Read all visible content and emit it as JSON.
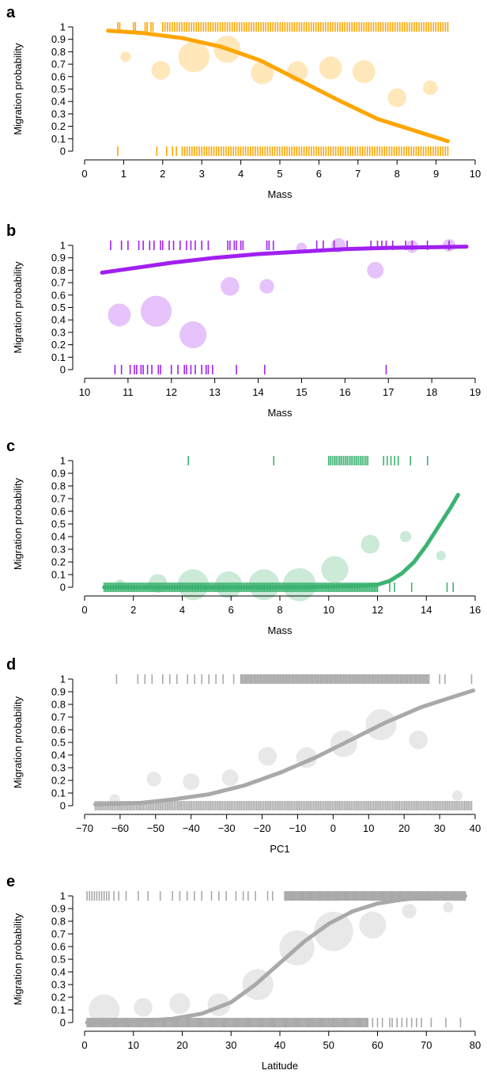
{
  "chart_data": [
    {
      "type": "scatter",
      "panel": "a",
      "color": "#FFA500",
      "xlabel": "Mass",
      "ylabel": "Migration probability",
      "xlim": [
        0,
        10
      ],
      "ylim": [
        0,
        1
      ],
      "xticks": [
        "0",
        "1",
        "2",
        "3",
        "4",
        "5",
        "6",
        "7",
        "8",
        "9",
        "10"
      ],
      "yticks": [
        "0",
        "0.1",
        "0.2",
        "0.3",
        "0.4",
        "0.5",
        "0.6",
        "0.7",
        "0.8",
        "0.9",
        "1"
      ],
      "bins": [
        {
          "x": 1.05,
          "y": 0.76,
          "size": 1
        },
        {
          "x": 1.95,
          "y": 0.65,
          "size": 3
        },
        {
          "x": 2.8,
          "y": 0.76,
          "size": 6
        },
        {
          "x": 3.65,
          "y": 0.82,
          "size": 5
        },
        {
          "x": 4.55,
          "y": 0.63,
          "size": 4
        },
        {
          "x": 5.45,
          "y": 0.64,
          "size": 3.5
        },
        {
          "x": 6.3,
          "y": 0.67,
          "size": 4
        },
        {
          "x": 7.15,
          "y": 0.64,
          "size": 4
        },
        {
          "x": 8.0,
          "y": 0.43,
          "size": 3
        },
        {
          "x": 8.85,
          "y": 0.51,
          "size": 2
        }
      ],
      "fit": {
        "x": [
          0.6,
          1.5,
          2.5,
          3.5,
          4.5,
          5.5,
          6.5,
          7.5,
          8.5,
          9.3
        ],
        "y": [
          0.97,
          0.95,
          0.91,
          0.84,
          0.73,
          0.57,
          0.41,
          0.26,
          0.16,
          0.08
        ]
      },
      "rug_top": [
        0.85,
        0.9,
        1.25,
        1.3,
        1.55,
        1.6,
        1.7,
        1.75,
        {
          "from": 2.0,
          "to": 9.3,
          "n": 120
        }
      ],
      "rug_bottom": [
        0.85,
        1.85,
        2.1,
        2.25,
        2.35,
        {
          "from": 2.5,
          "to": 9.3,
          "n": 110
        }
      ]
    },
    {
      "type": "scatter",
      "panel": "b",
      "color": "#A020F0",
      "xlabel": "Mass",
      "ylabel": "Migration probability",
      "xlim": [
        10,
        19
      ],
      "ylim": [
        0,
        1
      ],
      "xticks": [
        "10",
        "11",
        "12",
        "13",
        "14",
        "15",
        "16",
        "17",
        "18",
        "19"
      ],
      "yticks": [
        "0",
        "0.1",
        "0.2",
        "0.3",
        "0.4",
        "0.5",
        "0.6",
        "0.7",
        "0.8",
        "0.9",
        "1"
      ],
      "bins": [
        {
          "x": 10.8,
          "y": 0.44,
          "size": 4
        },
        {
          "x": 11.65,
          "y": 0.47,
          "size": 6
        },
        {
          "x": 12.5,
          "y": 0.28,
          "size": 5
        },
        {
          "x": 13.35,
          "y": 0.67,
          "size": 3
        },
        {
          "x": 14.2,
          "y": 0.67,
          "size": 2
        },
        {
          "x": 15.0,
          "y": 0.98,
          "size": 1
        },
        {
          "x": 15.85,
          "y": 1.0,
          "size": 2
        },
        {
          "x": 16.7,
          "y": 0.8,
          "size": 2.5
        },
        {
          "x": 17.55,
          "y": 0.99,
          "size": 1.5
        },
        {
          "x": 18.4,
          "y": 1.0,
          "size": 1.5
        }
      ],
      "fit": {
        "x": [
          10.4,
          11.0,
          12.0,
          13.0,
          14.0,
          15.0,
          16.0,
          17.0,
          18.0,
          18.8
        ],
        "y": [
          0.78,
          0.81,
          0.86,
          0.9,
          0.93,
          0.95,
          0.97,
          0.98,
          0.985,
          0.99
        ]
      },
      "rug_top": [
        10.6,
        10.85,
        11.0,
        11.25,
        11.35,
        11.5,
        11.6,
        11.75,
        11.8,
        11.95,
        12.05,
        12.2,
        12.35,
        12.45,
        12.55,
        12.7,
        12.85,
        13.3,
        13.35,
        13.45,
        13.5,
        13.6,
        13.65,
        14.2,
        14.25,
        14.35,
        15.35,
        15.5,
        15.75,
        16.05,
        16.6,
        16.75,
        16.85,
        16.95,
        17.1,
        17.4,
        17.55,
        17.9,
        18.4
      ],
      "rug_bottom": [
        10.7,
        10.85,
        11.05,
        11.15,
        11.2,
        11.3,
        11.35,
        11.45,
        11.55,
        11.7,
        11.75,
        12.0,
        12.15,
        12.3,
        12.35,
        12.45,
        12.55,
        12.7,
        12.8,
        12.85,
        12.95,
        13.5,
        14.15,
        16.95
      ]
    },
    {
      "type": "scatter",
      "panel": "c",
      "color": "#3CB371",
      "xlabel": "Mass",
      "ylabel": "Migration probability",
      "xlim": [
        0,
        16
      ],
      "ylim": [
        0,
        1
      ],
      "xticks": [
        "0",
        "2",
        "4",
        "6",
        "8",
        "10",
        "12",
        "14",
        "16"
      ],
      "yticks": [
        "0",
        "0.1",
        "0.2",
        "0.3",
        "0.4",
        "0.5",
        "0.6",
        "0.7",
        "0.8",
        "0.9",
        "1"
      ],
      "bins": [
        {
          "x": 1.45,
          "y": 0.02,
          "size": 1
        },
        {
          "x": 3.0,
          "y": 0.03,
          "size": 3
        },
        {
          "x": 4.45,
          "y": 0.02,
          "size": 6
        },
        {
          "x": 5.9,
          "y": 0.02,
          "size": 5
        },
        {
          "x": 7.35,
          "y": 0.02,
          "size": 6
        },
        {
          "x": 8.8,
          "y": 0.02,
          "size": 6.5
        },
        {
          "x": 10.25,
          "y": 0.14,
          "size": 5
        },
        {
          "x": 11.7,
          "y": 0.34,
          "size": 3
        },
        {
          "x": 13.15,
          "y": 0.4,
          "size": 1.2
        },
        {
          "x": 14.6,
          "y": 0.25,
          "size": 0.8
        }
      ],
      "fit": {
        "x": [
          0.8,
          4.0,
          8.0,
          11.5,
          12.0,
          12.5,
          13.0,
          13.5,
          14.0,
          14.5,
          15.0,
          15.3
        ],
        "y": [
          0.0,
          0.0,
          0.0,
          0.01,
          0.02,
          0.05,
          0.11,
          0.2,
          0.33,
          0.48,
          0.63,
          0.73
        ]
      },
      "rug_top": [
        4.25,
        7.75,
        {
          "from": 10.0,
          "to": 11.6,
          "n": 22
        },
        12.25,
        12.4,
        12.55,
        12.7,
        12.85,
        13.35,
        14.05
      ],
      "rug_bottom": [
        {
          "from": 0.8,
          "to": 12.0,
          "n": 180
        },
        12.5,
        12.7,
        13.4,
        14.85,
        15.1
      ]
    },
    {
      "type": "scatter",
      "panel": "d",
      "color": "#A9A9A9",
      "xlabel": "PC1",
      "ylabel": "Migration probability",
      "xlim": [
        -70,
        40
      ],
      "ylim": [
        0,
        1
      ],
      "xticks": [
        "−70",
        "−60",
        "−50",
        "−40",
        "−30",
        "−20",
        "−10",
        "0",
        "10",
        "20",
        "30",
        "40"
      ],
      "yticks": [
        "0",
        "0.1",
        "0.2",
        "0.3",
        "0.4",
        "0.5",
        "0.6",
        "0.7",
        "0.8",
        "0.9",
        "1"
      ],
      "bins": [
        {
          "x": -61.5,
          "y": 0.05,
          "size": 1
        },
        {
          "x": -50.5,
          "y": 0.21,
          "size": 2
        },
        {
          "x": -40.0,
          "y": 0.19,
          "size": 2.5
        },
        {
          "x": -29.0,
          "y": 0.22,
          "size": 2.5
        },
        {
          "x": -18.5,
          "y": 0.39,
          "size": 3
        },
        {
          "x": -7.5,
          "y": 0.38,
          "size": 3.5
        },
        {
          "x": 3.0,
          "y": 0.49,
          "size": 5
        },
        {
          "x": 13.5,
          "y": 0.64,
          "size": 6
        },
        {
          "x": 24.0,
          "y": 0.52,
          "size": 3
        },
        {
          "x": 35.0,
          "y": 0.08,
          "size": 1
        }
      ],
      "fit": {
        "x": [
          -67,
          -55,
          -45,
          -35,
          -25,
          -15,
          -5,
          5,
          15,
          25,
          35,
          39.5
        ],
        "y": [
          0.01,
          0.02,
          0.05,
          0.09,
          0.16,
          0.26,
          0.38,
          0.52,
          0.66,
          0.78,
          0.87,
          0.91
        ]
      },
      "rug_top": [
        -61,
        -55,
        -53,
        -51,
        -48,
        -46,
        -44,
        -41,
        -39,
        -37,
        -35,
        -33,
        -31,
        -28,
        {
          "from": -26,
          "to": 27,
          "n": 140
        },
        30,
        31.5,
        39
      ],
      "rug_bottom": [
        {
          "from": -67,
          "to": 39,
          "n": 220
        }
      ]
    },
    {
      "type": "scatter",
      "panel": "e",
      "color": "#A9A9A9",
      "xlabel": "Latitude",
      "ylabel": "Migration probability",
      "xlim": [
        0,
        80
      ],
      "ylim": [
        0,
        1
      ],
      "xticks": [
        "0",
        "10",
        "20",
        "30",
        "40",
        "50",
        "60",
        "70",
        "80"
      ],
      "yticks": [
        "0",
        "0.1",
        "0.2",
        "0.3",
        "0.4",
        "0.5",
        "0.6",
        "0.7",
        "0.8",
        "0.9",
        "1"
      ],
      "bins": [
        {
          "x": 4.0,
          "y": 0.1,
          "size": 6
        },
        {
          "x": 12.0,
          "y": 0.12,
          "size": 3
        },
        {
          "x": 19.5,
          "y": 0.15,
          "size": 3.5
        },
        {
          "x": 27.5,
          "y": 0.14,
          "size": 4
        },
        {
          "x": 35.5,
          "y": 0.3,
          "size": 6
        },
        {
          "x": 43.5,
          "y": 0.59,
          "size": 7
        },
        {
          "x": 51.0,
          "y": 0.72,
          "size": 8
        },
        {
          "x": 59.0,
          "y": 0.77,
          "size": 5
        },
        {
          "x": 66.5,
          "y": 0.88,
          "size": 2
        },
        {
          "x": 74.5,
          "y": 0.91,
          "size": 1
        }
      ],
      "fit": {
        "x": [
          0.5,
          10,
          18,
          24,
          30,
          35,
          40,
          45,
          50,
          55,
          60,
          65,
          70,
          78
        ],
        "y": [
          0.0,
          0.01,
          0.03,
          0.07,
          0.16,
          0.3,
          0.47,
          0.64,
          0.78,
          0.88,
          0.94,
          0.97,
          0.99,
          1.0
        ]
      },
      "rug_top": [
        0.5,
        1,
        1.5,
        2,
        2.5,
        3,
        3.5,
        4,
        4.5,
        5,
        6,
        7,
        8.5,
        11,
        13,
        15.5,
        18,
        19.5,
        21,
        22.5,
        24,
        26,
        27.5,
        29,
        31,
        32.5,
        33.5,
        35,
        37.5,
        38.5,
        {
          "from": 41,
          "to": 78,
          "n": 160
        }
      ],
      "rug_bottom": [
        {
          "from": 0.5,
          "to": 58,
          "n": 230
        },
        59,
        60,
        61,
        62.5,
        63,
        64,
        65,
        66,
        67,
        68,
        69,
        71,
        74,
        77
      ]
    }
  ]
}
